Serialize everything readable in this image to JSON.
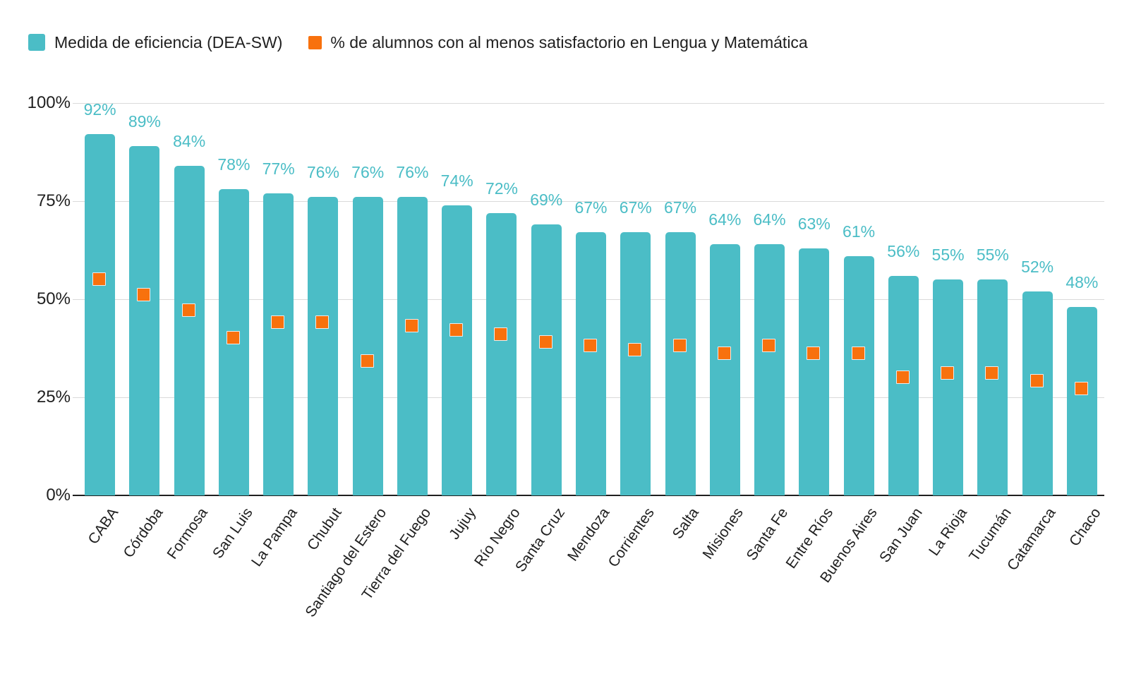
{
  "legend": [
    {
      "label": "Medida de eficiencia (DEA-SW)",
      "color": "#4bbdc6"
    },
    {
      "label": "% de alumnos con al menos satisfactorio en Lengua y Matemática",
      "color": "#f8710d"
    }
  ],
  "colors": {
    "bar": "#4bbdc6",
    "bar_label_text": "#4bbdc6",
    "marker": "#f8710d",
    "gridline": "#dadada",
    "axis_line": "#1f1f1f",
    "axis_text": "#1f1f1f",
    "background": "#ffffff"
  },
  "chart_data": {
    "type": "bar",
    "subtype": "combo-bar-with-square-point-markers",
    "title": "",
    "xlabel": "",
    "ylabel": "",
    "ylim": [
      0,
      100
    ],
    "grid": true,
    "legend_position": "top-left",
    "yticks": [
      {
        "value": 0,
        "label": "0%"
      },
      {
        "value": 25,
        "label": "25%"
      },
      {
        "value": 50,
        "label": "50%"
      },
      {
        "value": 75,
        "label": "75%"
      },
      {
        "value": 100,
        "label": "100%"
      }
    ],
    "categories": [
      "CABA",
      "Córdoba",
      "Formosa",
      "San Luis",
      "La Pampa",
      "Chubut",
      "Santiago del Estero",
      "Tierra del Fuego",
      "Jujuy",
      "Río Negro",
      "Santa Cruz",
      "Mendoza",
      "Corrientes",
      "Salta",
      "Misiones",
      "Santa Fe",
      "Entre Ríos",
      "Buenos Aires",
      "San Juan",
      "La Rioja",
      "Tucumán",
      "Catamarca",
      "Chaco"
    ],
    "series": [
      {
        "name": "Medida de eficiencia (DEA-SW)",
        "type": "bar",
        "color": "#4bbdc6",
        "values": [
          92,
          89,
          84,
          78,
          77,
          76,
          76,
          76,
          74,
          72,
          69,
          67,
          67,
          67,
          64,
          64,
          63,
          61,
          56,
          55,
          55,
          52,
          48
        ],
        "labels": [
          "92%",
          "89%",
          "84%",
          "78%",
          "77%",
          "76%",
          "76%",
          "76%",
          "74%",
          "72%",
          "69%",
          "67%",
          "67%",
          "67%",
          "64%",
          "64%",
          "63%",
          "61%",
          "56%",
          "55%",
          "55%",
          "52%",
          "48%"
        ]
      },
      {
        "name": "% de alumnos con al menos satisfactorio en Lengua y Matemática",
        "type": "scatter",
        "marker": "square",
        "color": "#f8710d",
        "values": [
          55,
          51,
          47,
          40,
          44,
          44,
          34,
          43,
          42,
          41,
          39,
          38,
          37,
          38,
          36,
          38,
          36,
          36,
          30,
          31,
          31,
          29,
          27
        ]
      }
    ]
  }
}
